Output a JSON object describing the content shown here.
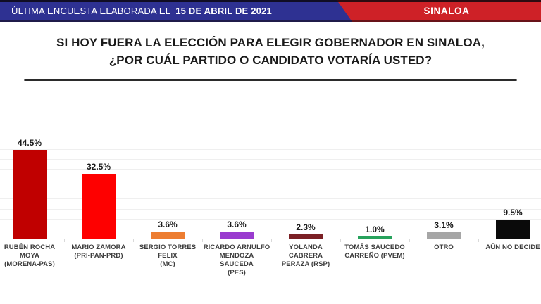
{
  "header": {
    "left_prefix": "ÚLTIMA ENCUESTA ELABORADA EL",
    "left_date": "15 DE ABRIL DE 2021",
    "right_label": "SINALOA",
    "blue_color": "#2E3192",
    "red_color": "#CE2127"
  },
  "title": {
    "line1": "SI HOY FUERA LA ELECCIÓN PARA ELEGIR GOBERNADOR EN SINALOA,",
    "line2": "¿POR CUÁL PARTIDO O CANDIDATO VOTARÍA USTED?"
  },
  "chart_data": {
    "type": "bar",
    "title": "SI HOY FUERA LA ELECCIÓN PARA ELEGIR GOBERNADOR EN SINALOA, ¿POR CUÁL PARTIDO O CANDIDATO VOTARÍA USTED?",
    "unit": "%",
    "categories": [
      "RUBÉN ROCHA MOYA (MORENA-PAS)",
      "MARIO ZAMORA (PRI-PAN-PRD)",
      "SERGIO TORRES FELIX (MC)",
      "RICARDO ARNULFO MENDOZA SAUCEDA (PES)",
      "YOLANDA CABRERA PERAZA (RSP)",
      "TOMÁS SAUCEDO CARREÑO (PVEM)",
      "OTRO",
      "AÚN NO DECIDE"
    ],
    "category_label_lines": [
      "RUBÉN ROCHA MOYA\n(MORENA-PAS)",
      "MARIO ZAMORA\n(PRI-PAN-PRD)",
      "SERGIO TORRES FELIX\n(MC)",
      "RICARDO ARNULFO\nMENDOZA SAUCEDA\n(PES)",
      "YOLANDA CABRERA\nPERAZA (RSP)",
      "TOMÁS SAUCEDO\nCARREÑO (PVEM)",
      "OTRO",
      "AÚN NO DECIDE"
    ],
    "values": [
      44.5,
      32.5,
      3.6,
      3.6,
      2.3,
      1.0,
      3.1,
      9.5
    ],
    "value_labels": [
      "44.5%",
      "32.5%",
      "3.6%",
      "3.6%",
      "2.3%",
      "1.0%",
      "3.1%",
      "9.5%"
    ],
    "bar_colors": [
      "#C00000",
      "#FE0000",
      "#ED7D31",
      "#9A3BCF",
      "#7B2025",
      "#27A25C",
      "#A6A6A6",
      "#0A0A0A"
    ],
    "ylim": [
      0,
      50
    ],
    "gridlines_every": 5,
    "grid": true,
    "legend": false,
    "xlabel": "",
    "ylabel": ""
  }
}
